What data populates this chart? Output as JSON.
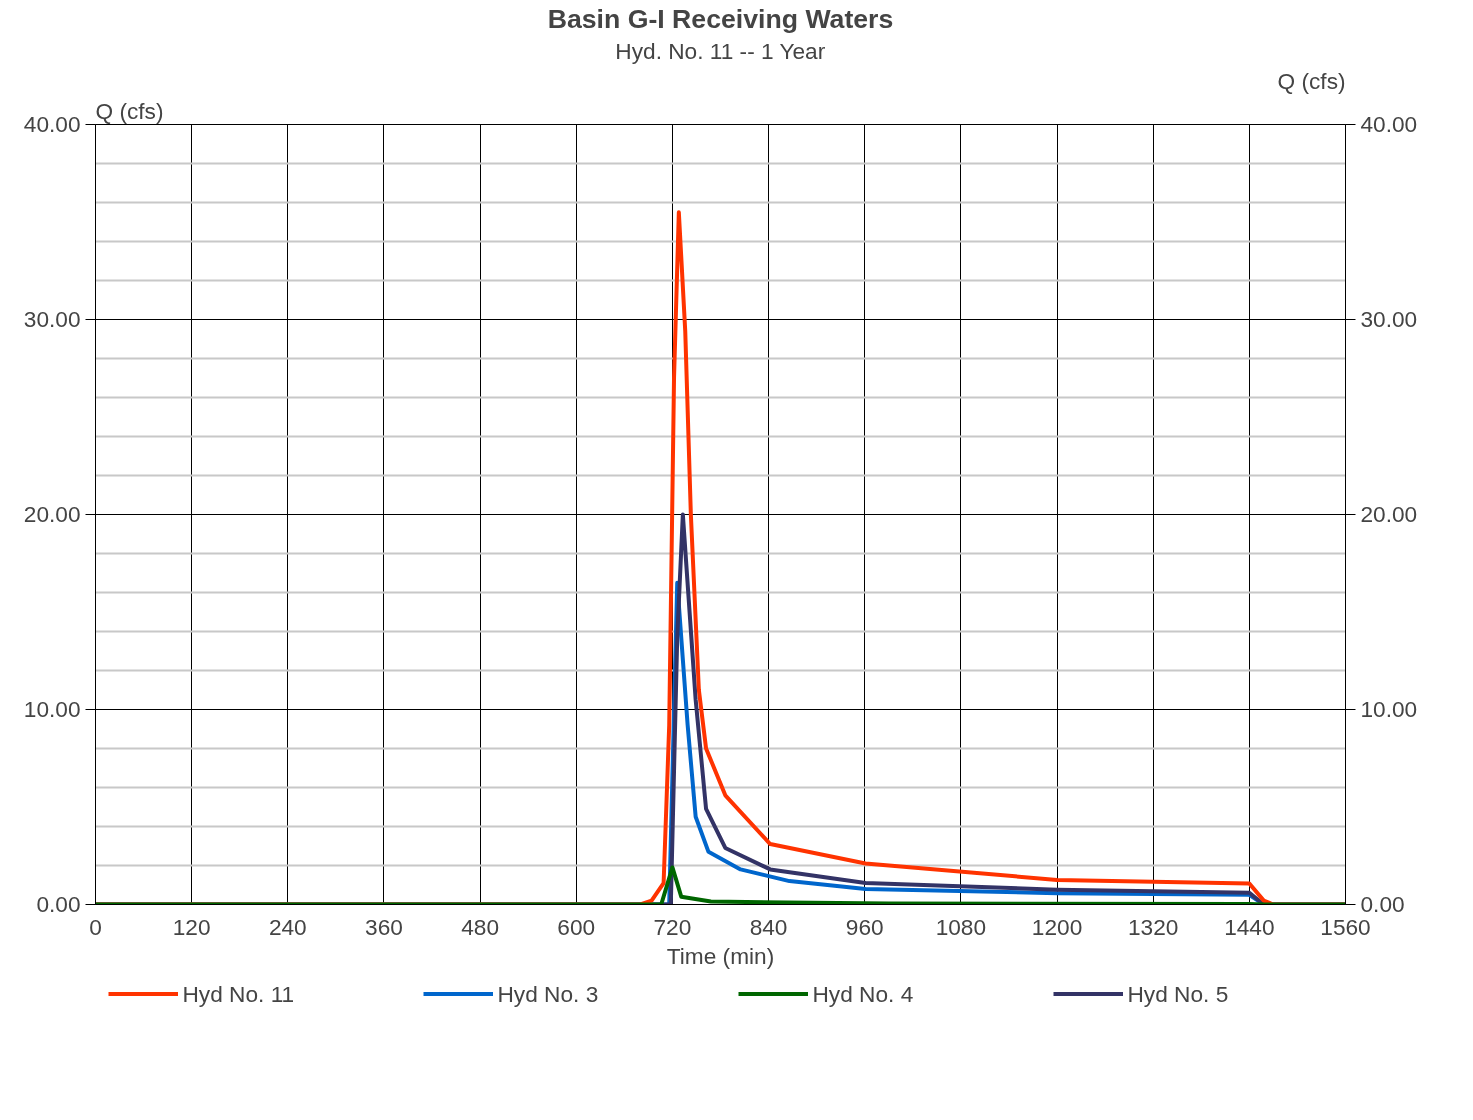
{
  "chart_data": {
    "type": "line",
    "title": "Basin G-I Receiving Waters",
    "subtitle": "Hyd. No. 11 -- 1 Year",
    "xlabel": "Time (min)",
    "ylabel": "Q (cfs)",
    "y2label": "Q (cfs)",
    "xlim": [
      0,
      1560
    ],
    "xticks": [
      0,
      120,
      240,
      360,
      480,
      600,
      720,
      840,
      960,
      1080,
      1200,
      1320,
      1440,
      1560
    ],
    "ylim": [
      0,
      40
    ],
    "yticks": [
      {
        "value": 0,
        "label": "0.00"
      },
      {
        "value": 10,
        "label": "10.00"
      },
      {
        "value": 20,
        "label": "20.00"
      },
      {
        "value": 30,
        "label": "30.00"
      },
      {
        "value": 40,
        "label": "40.00"
      }
    ],
    "y2lim": [
      0,
      40
    ],
    "y2ticks": [
      {
        "value": 0,
        "label": "0.00"
      },
      {
        "value": 10,
        "label": "10.00"
      },
      {
        "value": 20,
        "label": "20.00"
      },
      {
        "value": 30,
        "label": "30.00"
      },
      {
        "value": 40,
        "label": "40.00"
      }
    ],
    "grid": true,
    "legend": "bottom",
    "line_style": "solid",
    "series": [
      {
        "name": "Hyd No. 11",
        "color": "#ff3300",
        "x": [
          0,
          680,
          694,
          709,
          716,
          722,
          728,
          736,
          743,
          753,
          762,
          786,
          842,
          961,
          1200,
          1440,
          1458,
          1470,
          1560
        ],
        "values": [
          0,
          0,
          0.2,
          1.1,
          9.2,
          27,
          35.5,
          29.4,
          20,
          11,
          8,
          5.6,
          3.1,
          2.1,
          1.26,
          1.08,
          0.2,
          0,
          0
        ]
      },
      {
        "name": "Hyd No. 3",
        "color": "#0066cc",
        "x": [
          0,
          716,
          726,
          739,
          749,
          765,
          805,
          866,
          961,
          1200,
          1440,
          1458,
          1560
        ],
        "values": [
          0,
          0,
          16.5,
          9.2,
          4.5,
          2.7,
          1.8,
          1.2,
          0.8,
          0.58,
          0.5,
          0,
          0
        ]
      },
      {
        "name": "Hyd No. 4",
        "color": "#006600",
        "x": [
          0,
          706,
          720,
          731,
          768,
          990,
          1440,
          1458,
          1560
        ],
        "values": [
          0,
          0,
          1.9,
          0.4,
          0.15,
          0.05,
          0.03,
          0,
          0
        ]
      },
      {
        "name": "Hyd No. 5",
        "color": "#333366",
        "x": [
          0,
          718,
          726,
          733,
          749,
          762,
          786,
          842,
          961,
          1200,
          1440,
          1458,
          1560
        ],
        "values": [
          0,
          0,
          13.7,
          20,
          10.5,
          4.9,
          2.9,
          1.8,
          1.1,
          0.76,
          0.6,
          0,
          0
        ]
      }
    ]
  }
}
